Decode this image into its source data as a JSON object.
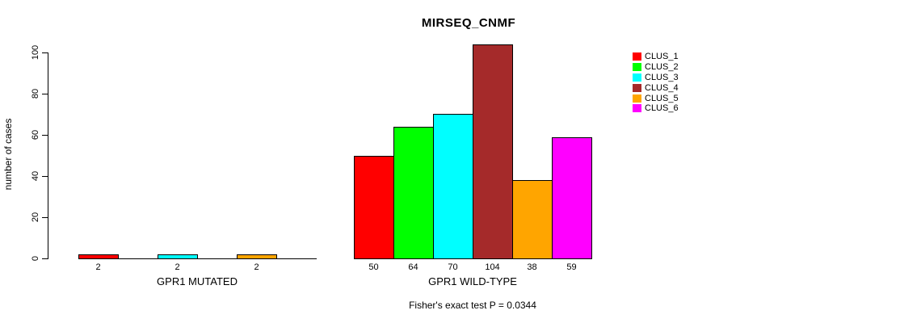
{
  "chart_data": {
    "type": "bar",
    "title": "MIRSEQ_CNMF",
    "ylabel": "number of cases",
    "xlabel": "",
    "ylim": [
      0,
      100
    ],
    "yticks": [
      0,
      20,
      40,
      60,
      80,
      100
    ],
    "grid": false,
    "legend_position": "right",
    "legend": [
      {
        "label": "CLUS_1",
        "color": "#FF0000"
      },
      {
        "label": "CLUS_2",
        "color": "#00FF00"
      },
      {
        "label": "CLUS_3",
        "color": "#00FFFF"
      },
      {
        "label": "CLUS_4",
        "color": "#A52A2A"
      },
      {
        "label": "CLUS_5",
        "color": "#FFA500"
      },
      {
        "label": "CLUS_6",
        "color": "#FF00FF"
      }
    ],
    "groups": [
      {
        "label": "GPR1 MUTATED",
        "values": [
          2,
          0,
          2,
          0,
          2,
          0
        ],
        "shown_bar_labels": [
          "2",
          "2",
          "2"
        ]
      },
      {
        "label": "GPR1 WILD-TYPE",
        "values": [
          50,
          64,
          70,
          104,
          38,
          59
        ],
        "shown_bar_labels": [
          "50",
          "64",
          "70",
          "104",
          "38",
          "59"
        ]
      }
    ],
    "footnote": "Fisher's exact test P = 0.0344"
  }
}
